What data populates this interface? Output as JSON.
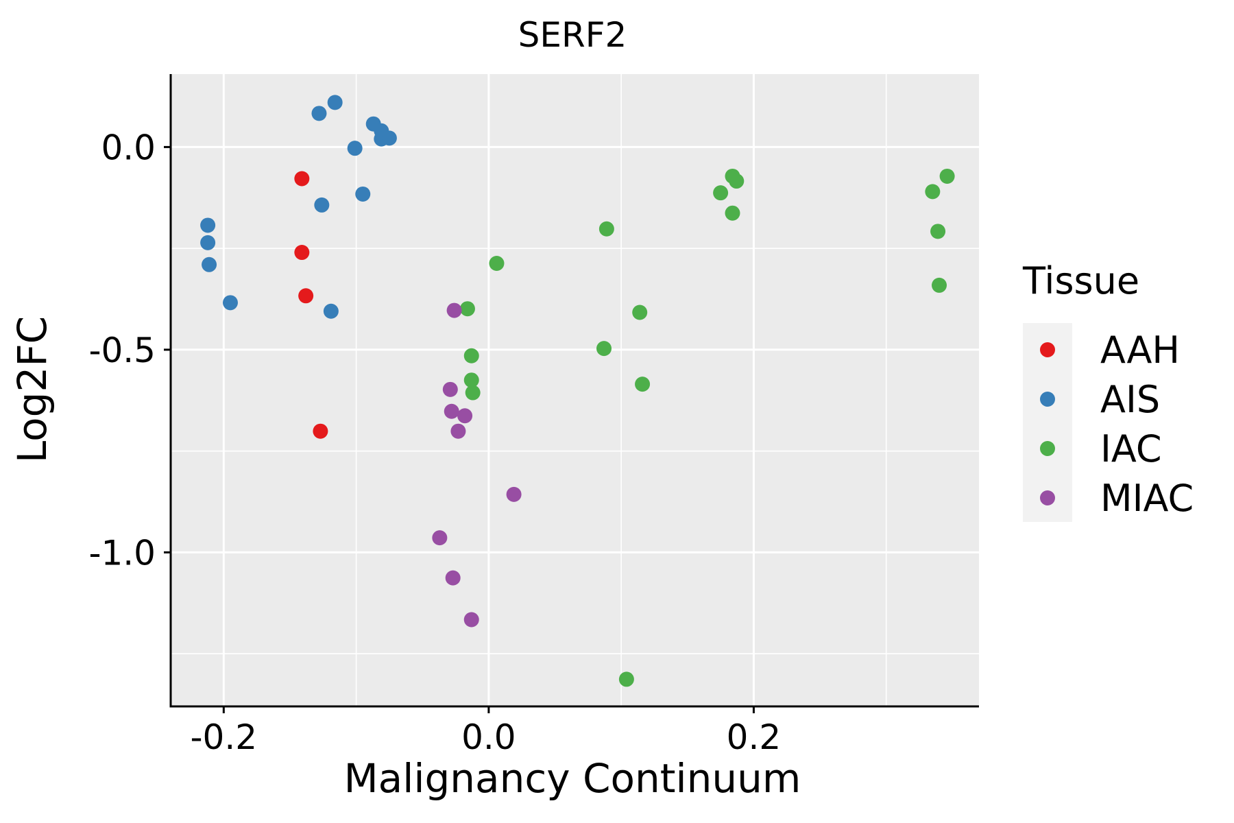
{
  "chart_data": {
    "type": "scatter",
    "title": "SERF2",
    "xlabel": "Malignancy Continuum",
    "ylabel": "Log2FC",
    "xlim": [
      -0.24,
      0.37
    ],
    "ylim": [
      -1.38,
      0.18
    ],
    "x_ticks": [
      -0.2,
      0.0,
      0.2
    ],
    "x_tick_labels": [
      "-0.2",
      "0.0",
      "0.2"
    ],
    "x_minor_grid": [
      -0.1,
      0.1,
      0.3
    ],
    "y_ticks": [
      0.0,
      -0.5,
      -1.0
    ],
    "y_tick_labels": [
      "0.0",
      "-0.5",
      "-1.0"
    ],
    "y_minor_grid": [
      -0.25,
      -0.75,
      -1.25
    ],
    "grid": true,
    "panel_color": "#ebebeb",
    "legend": {
      "title": "Tissue",
      "position": "right",
      "entries": [
        {
          "label": "AAH",
          "color": "#e41a1c"
        },
        {
          "label": "AIS",
          "color": "#377eb8"
        },
        {
          "label": "IAC",
          "color": "#4daf4a"
        },
        {
          "label": "MIAC",
          "color": "#984ea3"
        }
      ]
    },
    "series": [
      {
        "name": "AAH",
        "color": "#e41a1c",
        "points": [
          [
            -0.141,
            -0.078
          ],
          [
            -0.141,
            -0.26
          ],
          [
            -0.138,
            -0.367
          ],
          [
            -0.127,
            -0.701
          ]
        ]
      },
      {
        "name": "AIS",
        "color": "#377eb8",
        "points": [
          [
            -0.116,
            0.11
          ],
          [
            -0.128,
            0.083
          ],
          [
            -0.087,
            0.057
          ],
          [
            -0.081,
            0.04
          ],
          [
            -0.081,
            0.02
          ],
          [
            -0.075,
            0.022
          ],
          [
            -0.101,
            -0.003
          ],
          [
            -0.095,
            -0.116
          ],
          [
            -0.126,
            -0.143
          ],
          [
            -0.212,
            -0.193
          ],
          [
            -0.212,
            -0.236
          ],
          [
            -0.211,
            -0.29
          ],
          [
            -0.195,
            -0.384
          ],
          [
            -0.119,
            -0.405
          ]
        ]
      },
      {
        "name": "IAC",
        "color": "#4daf4a",
        "points": [
          [
            0.184,
            -0.072
          ],
          [
            0.187,
            -0.084
          ],
          [
            0.175,
            -0.113
          ],
          [
            0.184,
            -0.163
          ],
          [
            0.346,
            -0.072
          ],
          [
            0.335,
            -0.11
          ],
          [
            0.339,
            -0.208
          ],
          [
            0.34,
            -0.341
          ],
          [
            0.089,
            -0.202
          ],
          [
            0.006,
            -0.287
          ],
          [
            -0.016,
            -0.399
          ],
          [
            0.114,
            -0.408
          ],
          [
            -0.013,
            -0.515
          ],
          [
            0.087,
            -0.497
          ],
          [
            -0.013,
            -0.575
          ],
          [
            -0.012,
            -0.606
          ],
          [
            0.116,
            -0.585
          ],
          [
            0.104,
            -1.313
          ]
        ]
      },
      {
        "name": "MIAC",
        "color": "#984ea3",
        "points": [
          [
            -0.026,
            -0.403
          ],
          [
            -0.029,
            -0.598
          ],
          [
            -0.028,
            -0.652
          ],
          [
            -0.018,
            -0.663
          ],
          [
            -0.023,
            -0.701
          ],
          [
            0.019,
            -0.857
          ],
          [
            -0.037,
            -0.964
          ],
          [
            -0.027,
            -1.063
          ],
          [
            -0.013,
            -1.166
          ]
        ]
      }
    ]
  }
}
